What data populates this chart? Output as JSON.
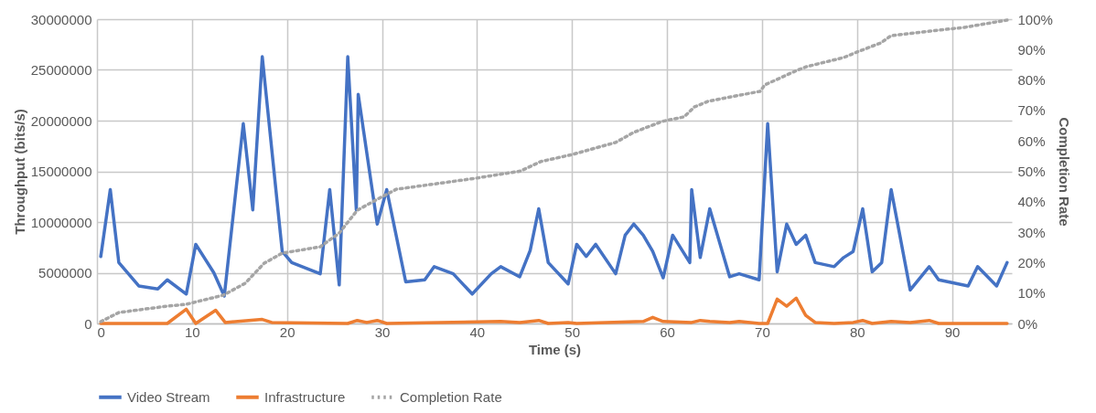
{
  "chart_data": {
    "type": "line",
    "xlabel": "Time (s)",
    "ylabel": "Throughput (bits/s)",
    "y2label": "Completion Rate",
    "xlim": [
      0,
      96.3
    ],
    "xticks": [
      0,
      10,
      20,
      30,
      40,
      50,
      60,
      70,
      80,
      90
    ],
    "ylim": [
      0,
      30000000
    ],
    "yticks": [
      0,
      5000000,
      10000000,
      15000000,
      20000000,
      25000000,
      30000000
    ],
    "y2lim": [
      0,
      100
    ],
    "y2ticks": [
      {
        "value": 0,
        "label": "0%"
      },
      {
        "value": 10,
        "label": "10%"
      },
      {
        "value": 20,
        "label": "20%"
      },
      {
        "value": 30,
        "label": "30%"
      },
      {
        "value": 40,
        "label": "40%"
      },
      {
        "value": 50,
        "label": "50%"
      },
      {
        "value": 60,
        "label": "60%"
      },
      {
        "value": 70,
        "label": "70%"
      },
      {
        "value": 80,
        "label": "80%"
      },
      {
        "value": 90,
        "label": "90%"
      },
      {
        "value": 100,
        "label": "100%"
      }
    ],
    "grid": true,
    "legend": "bottom",
    "marker": "none",
    "series": [
      {
        "name": "Video Stream",
        "color": "#4472c4",
        "line_style": "solid",
        "x": [
          0.4,
          1.4,
          2.3,
          4.4,
          6.4,
          7.4,
          9.4,
          10.4,
          12.3,
          13.4,
          15.4,
          16.4,
          17.4,
          19.5,
          20.5,
          23.5,
          24.5,
          25.5,
          26.4,
          27.3,
          27.5,
          29.5,
          30.5,
          32.5,
          34.5,
          35.5,
          37.5,
          39.5,
          41.5,
          42.5,
          44.5,
          45.6,
          46.5,
          47.5,
          49.6,
          50.5,
          51.5,
          52.5,
          54.6,
          55.6,
          56.5,
          57.5,
          58.5,
          59.6,
          60.6,
          62.4,
          62.6,
          63.5,
          64.5,
          66.6,
          67.6,
          69.7,
          70.6,
          71.6,
          72.6,
          73.6,
          74.6,
          75.6,
          77.6,
          78.6,
          79.6,
          80.6,
          81.6,
          82.6,
          83.6,
          85.6,
          87.6,
          88.6,
          91.7,
          92.7,
          94.7,
          95.8
        ],
        "values": [
          6600000,
          13200000,
          6000000,
          3700000,
          3400000,
          4300000,
          2900000,
          7800000,
          5000000,
          2700000,
          19700000,
          11200000,
          26300000,
          7100000,
          6000000,
          4900000,
          13200000,
          3800000,
          26300000,
          11200000,
          22600000,
          9800000,
          13200000,
          4100000,
          4300000,
          5600000,
          4900000,
          2900000,
          4900000,
          5600000,
          4600000,
          7200000,
          11300000,
          6000000,
          3900000,
          7800000,
          6600000,
          7800000,
          4900000,
          8700000,
          9800000,
          8700000,
          7100000,
          4500000,
          8700000,
          6000000,
          13200000,
          6500000,
          11300000,
          4600000,
          4900000,
          4300000,
          19700000,
          5100000,
          9800000,
          7800000,
          8700000,
          6000000,
          5600000,
          6500000,
          7100000,
          11300000,
          5100000,
          6000000,
          13200000,
          3300000,
          5600000,
          4300000,
          3700000,
          5600000,
          3700000,
          6000000
        ]
      },
      {
        "name": "Infrastructure",
        "color": "#ed7d31",
        "line_style": "solid",
        "x": [
          0.4,
          7.4,
          9.4,
          10.4,
          12.5,
          13.5,
          17.4,
          18.4,
          26.4,
          27.4,
          28.4,
          29.5,
          30.5,
          42.5,
          44.5,
          46.5,
          47.5,
          49.6,
          50.5,
          57.5,
          58.5,
          59.6,
          62.6,
          63.5,
          64.5,
          66.6,
          67.6,
          69.7,
          70.6,
          71.6,
          72.6,
          73.6,
          74.6,
          75.6,
          77.6,
          79.6,
          80.6,
          81.6,
          83.6,
          85.6,
          87.6,
          88.6,
          95.8
        ],
        "values": [
          0,
          0,
          1400000,
          0,
          1300000,
          100000,
          400000,
          100000,
          0,
          300000,
          100000,
          300000,
          0,
          200000,
          100000,
          300000,
          0,
          100000,
          0,
          200000,
          600000,
          200000,
          100000,
          300000,
          200000,
          100000,
          200000,
          0,
          0,
          2400000,
          1700000,
          2500000,
          800000,
          100000,
          0,
          100000,
          300000,
          0,
          200000,
          100000,
          300000,
          0,
          0
        ]
      },
      {
        "name": "Completion Rate",
        "color": "#a5a5a5",
        "line_style": "dotted",
        "axis": "y2",
        "x": [
          0.4,
          2.3,
          7.4,
          9.4,
          13.3,
          15.6,
          17.6,
          19.5,
          23.5,
          25.5,
          27.4,
          29.5,
          31.5,
          39.8,
          44.6,
          46.7,
          50.0,
          54.6,
          56.5,
          59.5,
          61.8,
          62.9,
          63.4,
          64.3,
          69.8,
          70.3,
          73.7,
          74.7,
          78.6,
          80.0,
          82.5,
          83.6,
          87.7,
          91.3,
          95.8
        ],
        "values": [
          0.6,
          3.6,
          5.7,
          6.3,
          9.3,
          13.2,
          19.8,
          23.1,
          25.2,
          29.7,
          37.2,
          40.8,
          44.1,
          47.7,
          50.1,
          53.2,
          55.5,
          59.5,
          62.8,
          66.4,
          67.9,
          71.2,
          71.8,
          73.0,
          76.3,
          78.4,
          83.2,
          84.4,
          87.4,
          89.2,
          92.2,
          94.6,
          96.1,
          97.3,
          99.7
        ]
      }
    ]
  }
}
